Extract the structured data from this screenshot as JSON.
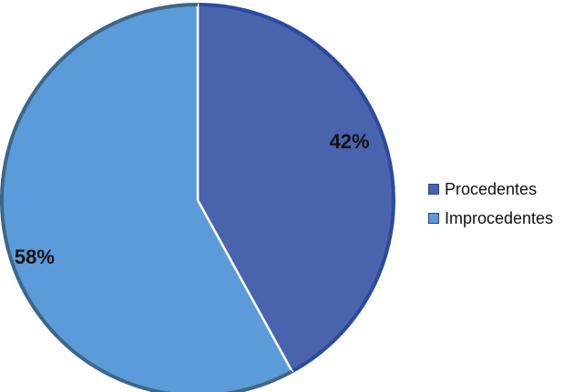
{
  "chart_data": {
    "type": "pie",
    "slices": [
      {
        "label": "Procedentes",
        "value": 42,
        "display": "42%",
        "color": "#4a63ad",
        "edge": "#2c49a0"
      },
      {
        "label": "Improcedentes",
        "value": 58,
        "display": "58%",
        "color": "#5b9bd9",
        "edge": "#3f6687"
      }
    ],
    "legend_position": "right"
  }
}
